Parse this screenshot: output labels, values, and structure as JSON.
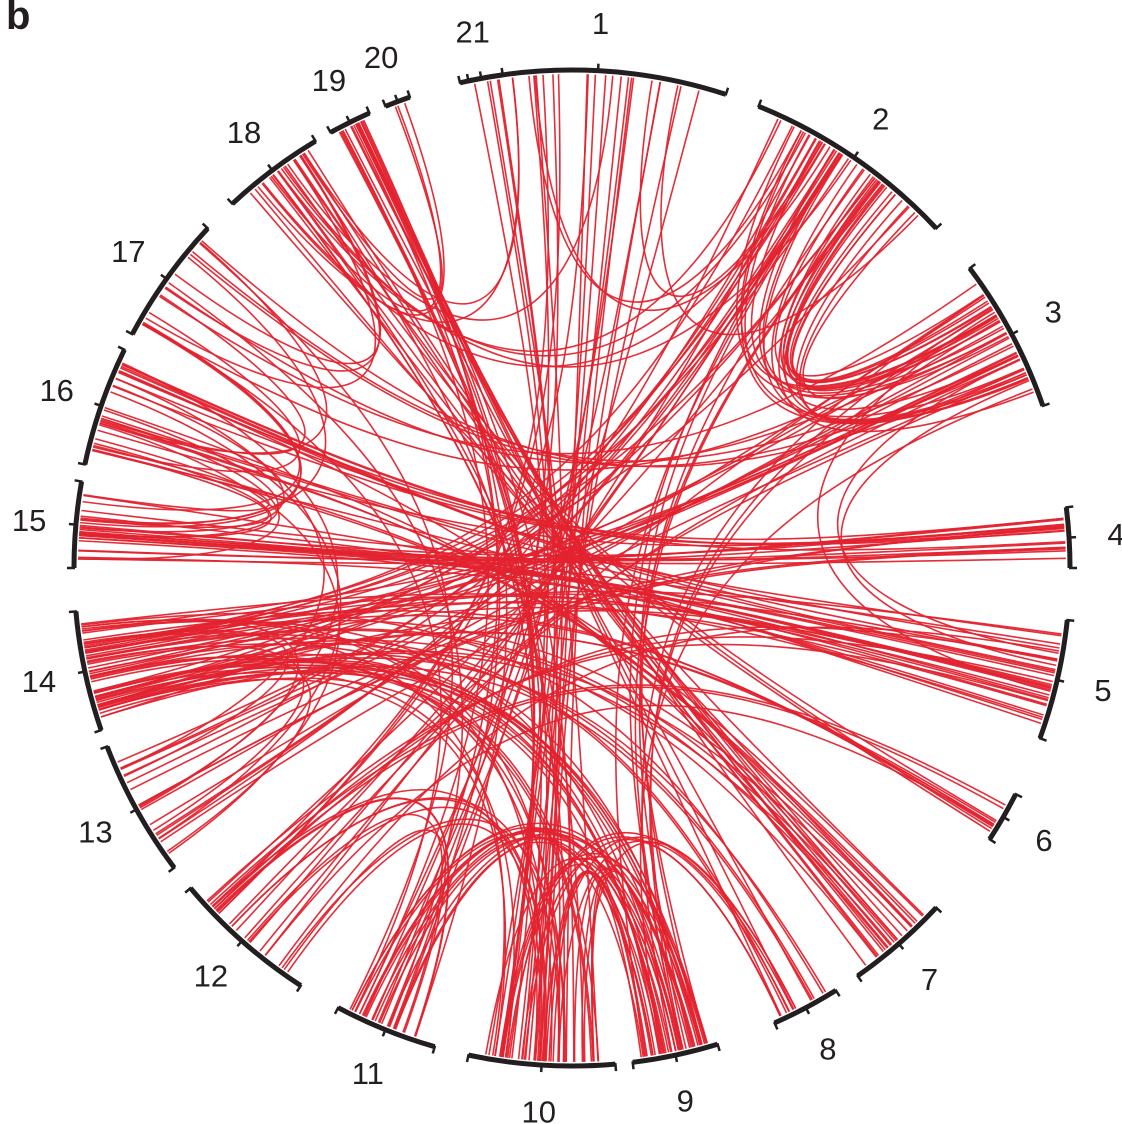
{
  "panel_label": "b",
  "segments": [
    {
      "label": "1",
      "start": -12,
      "end": 18
    },
    {
      "label": "2",
      "start": 22,
      "end": 47
    },
    {
      "label": "3",
      "start": 53,
      "end": 71
    },
    {
      "label": "4",
      "start": 83,
      "end": 90
    },
    {
      "label": "5",
      "start": 96,
      "end": 110
    },
    {
      "label": "6",
      "start": 117,
      "end": 123
    },
    {
      "label": "7",
      "start": 133,
      "end": 145
    },
    {
      "label": "8",
      "start": 148,
      "end": 156
    },
    {
      "label": "9",
      "start": 163,
      "end": 173
    },
    {
      "label": "10",
      "start": 175,
      "end": 192
    },
    {
      "label": "11",
      "start": 196,
      "end": 208
    },
    {
      "label": "12",
      "start": 213,
      "end": 230
    },
    {
      "label": "13",
      "start": 233,
      "end": 249
    },
    {
      "label": "14",
      "start": 251,
      "end": 265
    },
    {
      "label": "15",
      "start": 270,
      "end": 280
    },
    {
      "label": "16",
      "start": 282,
      "end": 296
    },
    {
      "label": "17",
      "start": 298,
      "end": 313
    },
    {
      "label": "18",
      "start": 317,
      "end": 329
    },
    {
      "label": "19",
      "start": 331,
      "end": 336
    },
    {
      "label": "20",
      "start": 338,
      "end": 341
    },
    {
      "label": "21",
      "start": 347,
      "end": 352
    }
  ],
  "link_bundles": [
    [
      2,
      3,
      24
    ],
    [
      2,
      9,
      6
    ],
    [
      2,
      14,
      4
    ],
    [
      1,
      10,
      10
    ],
    [
      1,
      11,
      6
    ],
    [
      1,
      18,
      3
    ],
    [
      1,
      12,
      3
    ],
    [
      3,
      17,
      6
    ],
    [
      3,
      14,
      8
    ],
    [
      3,
      9,
      4
    ],
    [
      3,
      13,
      4
    ],
    [
      4,
      15,
      8
    ],
    [
      4,
      16,
      6
    ],
    [
      4,
      13,
      4
    ],
    [
      5,
      15,
      10
    ],
    [
      5,
      16,
      6
    ],
    [
      5,
      14,
      8
    ],
    [
      5,
      12,
      4
    ],
    [
      6,
      12,
      3
    ],
    [
      6,
      14,
      4
    ],
    [
      7,
      16,
      6
    ],
    [
      7,
      14,
      6
    ],
    [
      7,
      18,
      6
    ],
    [
      7,
      19,
      5
    ],
    [
      8,
      14,
      6
    ],
    [
      8,
      10,
      6
    ],
    [
      9,
      10,
      12
    ],
    [
      9,
      14,
      12
    ],
    [
      9,
      11,
      4
    ],
    [
      10,
      14,
      10
    ],
    [
      10,
      12,
      6
    ],
    [
      10,
      18,
      4
    ],
    [
      11,
      9,
      8
    ],
    [
      11,
      12,
      4
    ],
    [
      13,
      2,
      6
    ],
    [
      14,
      2,
      5
    ],
    [
      14,
      13,
      4
    ],
    [
      15,
      16,
      6
    ],
    [
      15,
      17,
      4
    ],
    [
      16,
      17,
      3
    ],
    [
      17,
      18,
      3
    ],
    [
      18,
      20,
      3
    ],
    [
      18,
      2,
      4
    ],
    [
      19,
      10,
      6
    ],
    [
      19,
      11,
      4
    ],
    [
      21,
      10,
      3
    ],
    [
      1,
      2,
      4
    ],
    [
      3,
      5,
      3
    ],
    [
      12,
      2,
      4
    ],
    [
      12,
      3,
      3
    ],
    [
      13,
      16,
      4
    ],
    [
      11,
      17,
      3
    ],
    [
      6,
      18,
      3
    ],
    [
      8,
      19,
      3
    ]
  ]
}
